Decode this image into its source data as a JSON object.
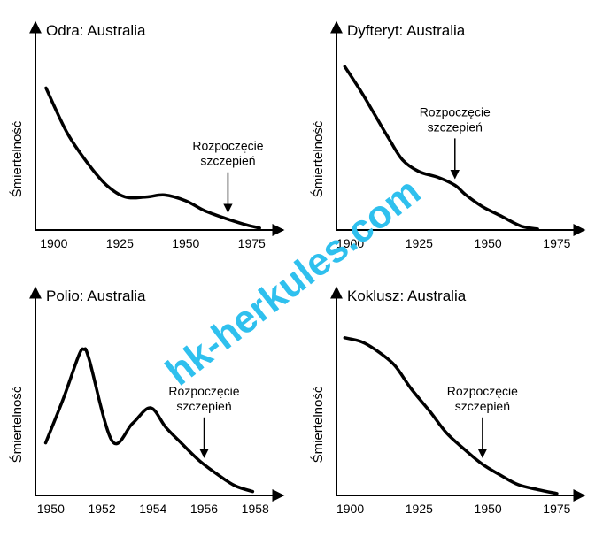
{
  "chart_data": [
    {
      "type": "line",
      "title": "Odra: Australia",
      "y_label": "Śmiertelność",
      "color": "#000000",
      "x": [
        1897,
        1905,
        1913,
        1920,
        1927,
        1935,
        1942,
        1950,
        1957,
        1965,
        1972,
        1978
      ],
      "values": [
        73,
        50,
        34,
        23,
        17,
        17,
        18,
        15,
        10,
        6,
        3,
        1
      ],
      "xlim": [
        1893,
        1987
      ],
      "xticks": [
        1900,
        1925,
        1950,
        1975
      ],
      "ylim": [
        0,
        100
      ],
      "annotation": {
        "lines": [
          "Rozpoczęcie",
          "szczepień"
        ],
        "x": 1966
      }
    },
    {
      "type": "line",
      "title": "Dyfteryt: Australia",
      "y_label": "Śmiertelność",
      "color": "#000000",
      "x": [
        1898,
        1904,
        1909,
        1914,
        1919,
        1925,
        1932,
        1938,
        1942,
        1948,
        1955,
        1962,
        1968
      ],
      "values": [
        84,
        71,
        59,
        47,
        36,
        30,
        27,
        23,
        18,
        12,
        7,
        2,
        0.5
      ],
      "xlim": [
        1895,
        1985
      ],
      "xticks": [
        1900,
        1925,
        1950,
        1975
      ],
      "ylim": [
        0,
        100
      ],
      "annotation": {
        "lines": [
          "Rozpoczęcie",
          "szczepień"
        ],
        "x": 1938
      }
    },
    {
      "type": "line",
      "title": "Polio: Australia",
      "y_label": "Śmiertelność",
      "color": "#000000",
      "x": [
        1949.8,
        1950.5,
        1951.1,
        1951.3,
        1951.5,
        1952.4,
        1953.2,
        1953.9,
        1954.5,
        1955.1,
        1955.8,
        1956.5,
        1957.2,
        1957.9
      ],
      "values": [
        27,
        50,
        72,
        75,
        70,
        28,
        37,
        45,
        35,
        27,
        18,
        11,
        5,
        2
      ],
      "xlim": [
        1949.4,
        1959.1
      ],
      "xticks": [
        1950,
        1952,
        1954,
        1956,
        1958
      ],
      "ylim": [
        0,
        100
      ],
      "annotation": {
        "lines": [
          "Rozpoczęcie",
          "szczepień"
        ],
        "x": 1956
      }
    },
    {
      "type": "line",
      "title": "Koklusz: Australia",
      "y_label": "Śmiertelność",
      "color": "#000000",
      "x": [
        1898,
        1904,
        1909,
        1916,
        1922,
        1929,
        1935,
        1942,
        1948,
        1955,
        1961,
        1968,
        1975
      ],
      "values": [
        81,
        79,
        75,
        67,
        55,
        43,
        32,
        23,
        16,
        10,
        5.5,
        3,
        1
      ],
      "xlim": [
        1895,
        1985
      ],
      "xticks": [
        1900,
        1925,
        1950,
        1975
      ],
      "ylim": [
        0,
        100
      ],
      "annotation": {
        "lines": [
          "Rozpoczęcie",
          "szczepień"
        ],
        "x": 1948
      }
    }
  ],
  "watermark": "hk-herkules.com"
}
